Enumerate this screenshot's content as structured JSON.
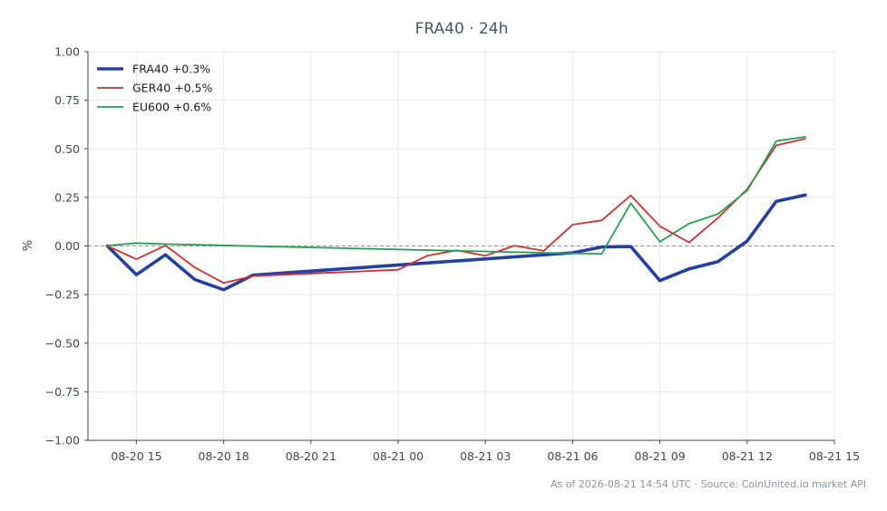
{
  "chart_data": {
    "type": "line",
    "title": "FRA40 · 24h",
    "xlabel": "",
    "ylabel": "%",
    "ylim": [
      -1.0,
      1.0
    ],
    "xlim": [
      "2026-08-20 13:20",
      "2026-08-21 15:00"
    ],
    "grid": true,
    "legend_position": "top-left",
    "reference_line": {
      "y": 0,
      "style": "dashed",
      "color": "#8a96b0"
    },
    "y_ticks": [
      "1.00",
      "0.75",
      "0.50",
      "0.25",
      "0.00",
      "−0.25",
      "−0.50",
      "−0.75",
      "−1.00"
    ],
    "y_tick_values": [
      1.0,
      0.75,
      0.5,
      0.25,
      0.0,
      -0.25,
      -0.5,
      -0.75,
      -1.0
    ],
    "x_ticks": [
      "08-20 15",
      "08-20 18",
      "08-20 21",
      "08-21 00",
      "08-21 03",
      "08-21 06",
      "08-21 09",
      "08-21 12",
      "08-21 15"
    ],
    "x_tick_times": [
      "2026-08-20 15:00",
      "2026-08-20 18:00",
      "2026-08-20 21:00",
      "2026-08-21 00:00",
      "2026-08-21 03:00",
      "2026-08-21 06:00",
      "2026-08-21 09:00",
      "2026-08-21 12:00",
      "2026-08-21 15:00"
    ],
    "series": [
      {
        "name": "FRA40 +0.3%",
        "color": "#2440a0",
        "line_weight": "thick",
        "points": [
          [
            "2026-08-20 14:00",
            0.0
          ],
          [
            "2026-08-20 15:00",
            -0.148
          ],
          [
            "2026-08-20 16:00",
            -0.045
          ],
          [
            "2026-08-20 17:00",
            -0.172
          ],
          [
            "2026-08-20 18:00",
            -0.225
          ],
          [
            "2026-08-20 19:00",
            -0.15
          ],
          [
            "2026-08-21 06:00",
            -0.035
          ],
          [
            "2026-08-21 07:00",
            -0.005
          ],
          [
            "2026-08-21 08:00",
            -0.003
          ],
          [
            "2026-08-21 09:00",
            -0.178
          ],
          [
            "2026-08-21 10:00",
            -0.118
          ],
          [
            "2026-08-21 11:00",
            -0.08
          ],
          [
            "2026-08-21 12:00",
            0.025
          ],
          [
            "2026-08-21 13:00",
            0.23
          ],
          [
            "2026-08-21 14:00",
            0.262
          ]
        ]
      },
      {
        "name": "GER40 +0.5%",
        "color": "#d03030",
        "line_weight": "normal",
        "points": [
          [
            "2026-08-20 14:00",
            0.0
          ],
          [
            "2026-08-20 15:00",
            -0.068
          ],
          [
            "2026-08-20 16:00",
            0.003
          ],
          [
            "2026-08-20 17:00",
            -0.11
          ],
          [
            "2026-08-20 18:00",
            -0.19
          ],
          [
            "2026-08-20 19:00",
            -0.155
          ],
          [
            "2026-08-21 00:00",
            -0.122
          ],
          [
            "2026-08-21 01:00",
            -0.05
          ],
          [
            "2026-08-21 02:00",
            -0.022
          ],
          [
            "2026-08-21 03:00",
            -0.05
          ],
          [
            "2026-08-21 04:00",
            0.002
          ],
          [
            "2026-08-21 05:00",
            -0.025
          ],
          [
            "2026-08-21 06:00",
            0.11
          ],
          [
            "2026-08-21 07:00",
            0.132
          ],
          [
            "2026-08-21 08:00",
            0.26
          ],
          [
            "2026-08-21 09:00",
            0.102
          ],
          [
            "2026-08-21 10:00",
            0.018
          ],
          [
            "2026-08-21 11:00",
            0.145
          ],
          [
            "2026-08-21 12:00",
            0.292
          ],
          [
            "2026-08-21 13:00",
            0.518
          ],
          [
            "2026-08-21 14:00",
            0.552
          ]
        ]
      },
      {
        "name": "EU600 +0.6%",
        "color": "#25a050",
        "line_weight": "normal",
        "points": [
          [
            "2026-08-20 14:00",
            0.002
          ],
          [
            "2026-08-20 15:00",
            0.015
          ],
          [
            "2026-08-20 16:00",
            0.01
          ],
          [
            "2026-08-21 05:00",
            -0.035
          ],
          [
            "2026-08-21 06:00",
            -0.038
          ],
          [
            "2026-08-21 07:00",
            -0.04
          ],
          [
            "2026-08-21 08:00",
            0.22
          ],
          [
            "2026-08-21 09:00",
            0.022
          ],
          [
            "2026-08-21 10:00",
            0.115
          ],
          [
            "2026-08-21 11:00",
            0.165
          ],
          [
            "2026-08-21 12:00",
            0.285
          ],
          [
            "2026-08-21 13:00",
            0.54
          ],
          [
            "2026-08-21 14:00",
            0.562
          ]
        ]
      }
    ]
  },
  "footer": "As of 2026-08-21 14:54 UTC · Source: CoinUnited.io market API"
}
